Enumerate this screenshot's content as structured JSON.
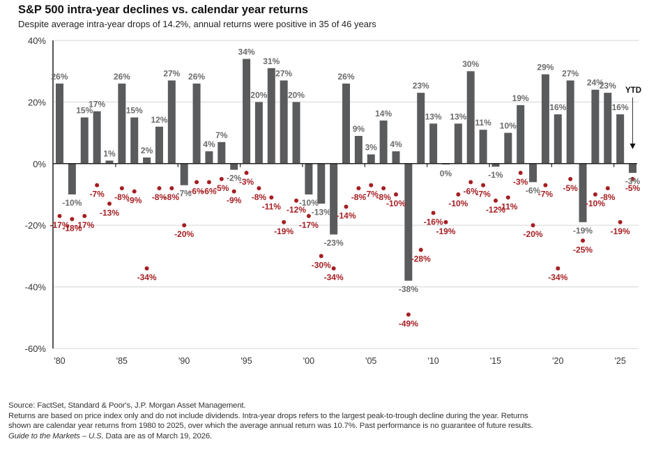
{
  "header": {
    "title": "S&P 500 intra-year declines vs. calendar year returns",
    "subtitle": "Despite average intra-year drops of 14.2%, annual returns were positive in 35 of 46 years"
  },
  "chart_data": {
    "type": "bar",
    "title": "S&P 500 intra-year declines vs. calendar year returns",
    "subtitle": "Despite average intra-year drops of 14.2%, annual returns were positive in 35 of 46 years",
    "xlabel": "",
    "ylabel": "",
    "ylim": [
      -60,
      40
    ],
    "yticks": [
      40,
      20,
      0,
      -20,
      -40,
      -60
    ],
    "ytick_labels": [
      "40%",
      "20%",
      "0%",
      "-20%",
      "-40%",
      "-60%"
    ],
    "xtick_years": [
      1980,
      1985,
      1990,
      1995,
      2000,
      2005,
      2010,
      2015,
      2020,
      2025
    ],
    "xtick_labels": [
      "'80",
      "'85",
      "'90",
      "'95",
      "'00",
      "'05",
      "'10",
      "'15",
      "'20",
      "'25"
    ],
    "grid": true,
    "x": [
      1980,
      1981,
      1982,
      1983,
      1984,
      1985,
      1986,
      1987,
      1988,
      1989,
      1990,
      1991,
      1992,
      1993,
      1994,
      1995,
      1996,
      1997,
      1998,
      1999,
      2000,
      2001,
      2002,
      2003,
      2004,
      2005,
      2006,
      2007,
      2008,
      2009,
      2010,
      2011,
      2012,
      2013,
      2014,
      2015,
      2016,
      2017,
      2018,
      2019,
      2020,
      2021,
      2022,
      2023,
      2024,
      2025,
      2026
    ],
    "series": [
      {
        "name": "Calendar year return",
        "kind": "bar",
        "color": "#595b5d",
        "label_color": "#6b6b6b",
        "values": [
          26,
          -10,
          15,
          17,
          1,
          26,
          15,
          2,
          12,
          27,
          -7,
          26,
          4,
          7,
          -2,
          34,
          20,
          31,
          27,
          20,
          -10,
          -13,
          -23,
          26,
          9,
          3,
          14,
          4,
          -38,
          23,
          13,
          0,
          13,
          30,
          11,
          -1,
          10,
          19,
          -6,
          29,
          16,
          27,
          -19,
          24,
          23,
          16,
          -3
        ]
      },
      {
        "name": "Intra-year decline",
        "kind": "scatter",
        "color": "#a51e22",
        "values": [
          -17,
          -18,
          -17,
          -7,
          -13,
          -8,
          -9,
          -34,
          -8,
          -8,
          -20,
          -6,
          -6,
          -5,
          -9,
          -3,
          -8,
          -11,
          -19,
          -12,
          -17,
          -30,
          -34,
          -14,
          -8,
          -7,
          -8,
          -10,
          -49,
          -28,
          -16,
          -19,
          -10,
          -6,
          -7,
          -12,
          -11,
          -3,
          -20,
          -7,
          -34,
          -5,
          -25,
          -10,
          -8,
          -19,
          -5
        ]
      }
    ],
    "annotations": [
      {
        "text": "YTD",
        "year": 2026,
        "arrow": "down"
      }
    ]
  },
  "footer": {
    "source": "Source: FactSet, Standard & Poor's, J.P. Morgan Asset Management.",
    "note_line1": "Returns are based on price index only and do not include dividends. Intra-year drops refers to the largest peak-to-trough decline during the year. Returns",
    "note_line2": "shown are calendar year returns from 1980 to 2025, over which the average annual return was 10.7%. Past performance is no guarantee of future results.",
    "guide_italic": "Guide to the Markets – U.S.",
    "data_as_of": " Data are as of March 19, 2026."
  }
}
